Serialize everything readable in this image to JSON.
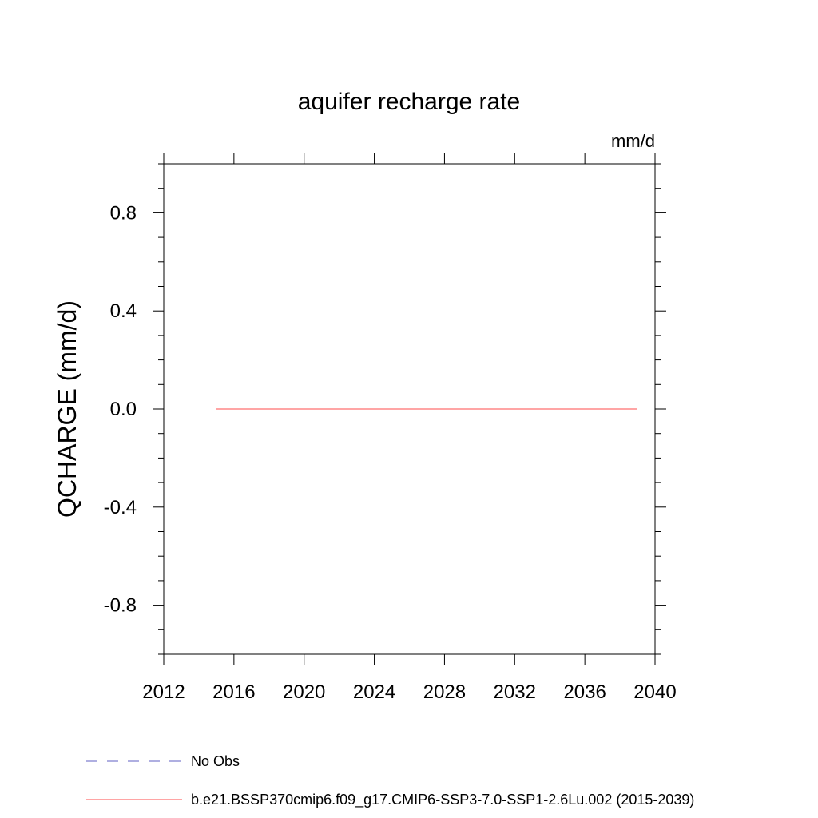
{
  "chart_data": {
    "type": "line",
    "title": "aquifer recharge rate",
    "units_label": "mm/d",
    "ylabel": "QCHARGE  (mm/d)",
    "xlabel": "",
    "xlim": [
      2012,
      2040
    ],
    "ylim": [
      -1.0,
      1.0
    ],
    "x_ticks": [
      2012,
      2016,
      2020,
      2024,
      2028,
      2032,
      2036,
      2040
    ],
    "x_tick_labels": [
      "2012",
      "2016",
      "2020",
      "2024",
      "2028",
      "2032",
      "2036",
      "2040"
    ],
    "y_ticks": [
      -0.8,
      -0.4,
      0.0,
      0.4,
      0.8
    ],
    "y_tick_labels": [
      "-0.8",
      "-0.4",
      "0.0",
      "0.4",
      "0.8"
    ],
    "grid": false,
    "legend_position": "bottom",
    "series": [
      {
        "name": "No Obs",
        "color": "#7f7fcf",
        "style": "dashed",
        "x": [],
        "y": []
      },
      {
        "name": "b.e21.BSSP370cmip6.f09_g17.CMIP6-SSP3-7.0-SSP1-2.6Lu.002 (2015-2039)",
        "color": "#ff6f6f",
        "style": "solid",
        "x": [
          2015,
          2039
        ],
        "y": [
          0.0,
          0.0
        ]
      }
    ]
  }
}
